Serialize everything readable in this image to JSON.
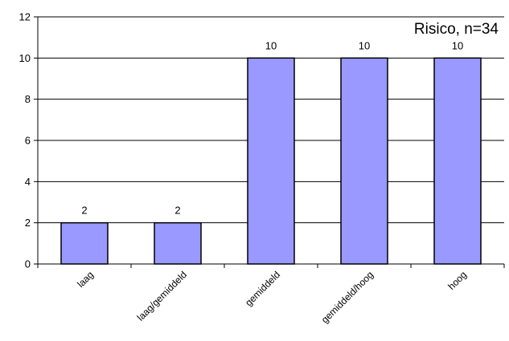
{
  "chart_data": {
    "type": "bar",
    "title": "Risico, n=34",
    "categories": [
      "laag",
      "laag/gemiddeld",
      "gemiddeld",
      "gemiddeld/hoog",
      "hoog"
    ],
    "values": [
      2,
      2,
      10,
      10,
      10
    ],
    "xlabel": "",
    "ylabel": "",
    "ylim": [
      0,
      12
    ],
    "yticks": [
      "0",
      "2",
      "4",
      "6",
      "8",
      "10",
      "12"
    ],
    "grid": true,
    "legend": "none",
    "colors": {
      "bar_fill": "#9999ff",
      "bar_stroke": "#000000",
      "grid": "#000000",
      "axis": "#000000"
    }
  }
}
